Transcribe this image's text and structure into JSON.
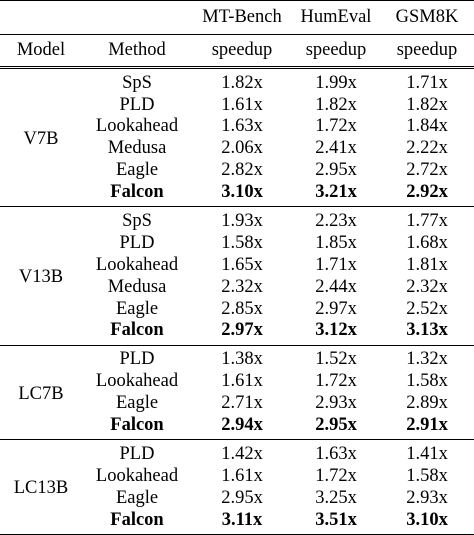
{
  "table": {
    "header_benchmarks": [
      "MT-Bench",
      "HumEval",
      "GSM8K"
    ],
    "header_model": "Model",
    "header_method": "Method",
    "header_metric": [
      "speedup",
      "speedup",
      "speedup"
    ],
    "groups": [
      {
        "model": "V7B",
        "rows": [
          {
            "method": "SpS",
            "values": [
              "1.82x",
              "1.99x",
              "1.71x"
            ],
            "bold": false
          },
          {
            "method": "PLD",
            "values": [
              "1.61x",
              "1.82x",
              "1.82x"
            ],
            "bold": false
          },
          {
            "method": "Lookahead",
            "values": [
              "1.63x",
              "1.72x",
              "1.84x"
            ],
            "bold": false
          },
          {
            "method": "Medusa",
            "values": [
              "2.06x",
              "2.41x",
              "2.22x"
            ],
            "bold": false
          },
          {
            "method": "Eagle",
            "values": [
              "2.82x",
              "2.95x",
              "2.72x"
            ],
            "bold": false
          },
          {
            "method": "Falcon",
            "values": [
              "3.10x",
              "3.21x",
              "2.92x"
            ],
            "bold": true
          }
        ]
      },
      {
        "model": "V13B",
        "rows": [
          {
            "method": "SpS",
            "values": [
              "1.93x",
              "2.23x",
              "1.77x"
            ],
            "bold": false
          },
          {
            "method": "PLD",
            "values": [
              "1.58x",
              "1.85x",
              "1.68x"
            ],
            "bold": false
          },
          {
            "method": "Lookahead",
            "values": [
              "1.65x",
              "1.71x",
              "1.81x"
            ],
            "bold": false
          },
          {
            "method": "Medusa",
            "values": [
              "2.32x",
              "2.44x",
              "2.32x"
            ],
            "bold": false
          },
          {
            "method": "Eagle",
            "values": [
              "2.85x",
              "2.97x",
              "2.52x"
            ],
            "bold": false
          },
          {
            "method": "Falcon",
            "values": [
              "2.97x",
              "3.12x",
              "3.13x"
            ],
            "bold": true
          }
        ]
      },
      {
        "model": "LC7B",
        "rows": [
          {
            "method": "PLD",
            "values": [
              "1.38x",
              "1.52x",
              "1.32x"
            ],
            "bold": false
          },
          {
            "method": "Lookahead",
            "values": [
              "1.61x",
              "1.72x",
              "1.58x"
            ],
            "bold": false
          },
          {
            "method": "Eagle",
            "values": [
              "2.71x",
              "2.93x",
              "2.89x"
            ],
            "bold": false
          },
          {
            "method": "Falcon",
            "values": [
              "2.94x",
              "2.95x",
              "2.91x"
            ],
            "bold": true
          }
        ]
      },
      {
        "model": "LC13B",
        "rows": [
          {
            "method": "PLD",
            "values": [
              "1.42x",
              "1.63x",
              "1.41x"
            ],
            "bold": false
          },
          {
            "method": "Lookahead",
            "values": [
              "1.61x",
              "1.72x",
              "1.58x"
            ],
            "bold": false
          },
          {
            "method": "Eagle",
            "values": [
              "2.95x",
              "3.25x",
              "2.93x"
            ],
            "bold": false
          },
          {
            "method": "Falcon",
            "values": [
              "3.11x",
              "3.51x",
              "3.10x"
            ],
            "bold": true
          }
        ]
      }
    ]
  }
}
